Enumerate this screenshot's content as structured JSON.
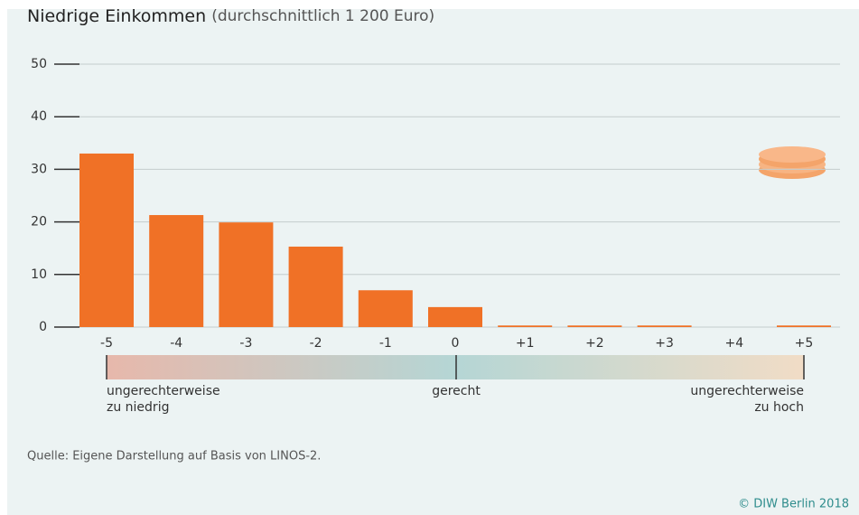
{
  "chart_data": {
    "type": "bar",
    "title": "Niedrige Einkommen",
    "subtitle": "(durchschnittlich 1 200 Euro)",
    "categories": [
      "-5",
      "-4",
      "-3",
      "-2",
      "-1",
      "0",
      "+1",
      "+2",
      "+3",
      "+4",
      "+5"
    ],
    "values": [
      33,
      21.3,
      19.9,
      15.3,
      7,
      3.8,
      0.3,
      0.3,
      0.3,
      0,
      0.3
    ],
    "color": "#f07126",
    "ylim": [
      0,
      50
    ],
    "yticks": [
      0,
      10,
      20,
      30,
      40,
      50
    ],
    "grid": true,
    "scale_labels": {
      "left": [
        "ungerechterweise",
        "zu niedrig"
      ],
      "center": "gerecht",
      "right": [
        "ungerechterweise",
        "zu hoch"
      ]
    },
    "source": "Quelle: Eigene Darstellung auf Basis von LINOS-2.",
    "copyright": "© DIW Berlin 2018"
  }
}
